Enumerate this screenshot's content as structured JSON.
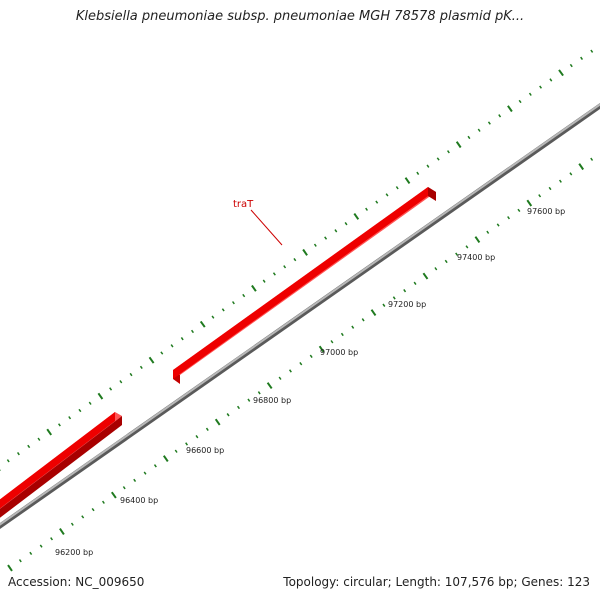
{
  "title": "Klebsiella pneumoniae subsp. pneumoniae MGH 78578 plasmid pK...",
  "footer": {
    "accession": "Accession: NC_009650",
    "summary": "Topology: circular; Length: 107,576 bp; Genes: 123"
  },
  "colors": {
    "backbone": "#8c8c8c",
    "gene": "#ee0000",
    "tick": "#1f7a1f",
    "gene_label": "#cc0000"
  },
  "gene_labels": [
    {
      "name": "traT"
    }
  ],
  "scale_labels": [
    "96200 bp",
    "96400 bp",
    "96600 bp",
    "96800 bp",
    "97000 bp",
    "97200 bp",
    "97400 bp",
    "97600 bp"
  ]
}
